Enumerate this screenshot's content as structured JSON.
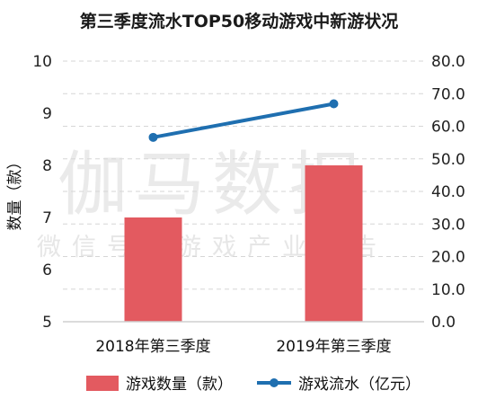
{
  "chart_data": {
    "type": "bar+line",
    "title": "第三季度流水TOP50移动游戏中新游状况",
    "categories": [
      "2018年第三季度",
      "2019年第三季度"
    ],
    "series": [
      {
        "name": "游戏数量（款）",
        "type": "bar",
        "axis": "left",
        "values": [
          7,
          8
        ],
        "color": "#e35a60"
      },
      {
        "name": "游戏流水（亿元）",
        "type": "line",
        "axis": "right",
        "values": [
          56.6,
          66.9
        ],
        "color": "#1f6fb0"
      }
    ],
    "ylabel": "数量（款）",
    "y_left": {
      "min": 5,
      "max": 10,
      "ticks": [
        "5",
        "6",
        "7",
        "8",
        "9",
        "10"
      ]
    },
    "y_right": {
      "min": 0,
      "max": 80,
      "ticks": [
        "0.0",
        "10.0",
        "20.0",
        "30.0",
        "40.0",
        "50.0",
        "60.0",
        "70.0",
        "80.0"
      ]
    },
    "grid": true,
    "legend_position": "bottom"
  },
  "watermark": {
    "main": "伽马数据",
    "sub": "微信号：游戏产业报告"
  }
}
